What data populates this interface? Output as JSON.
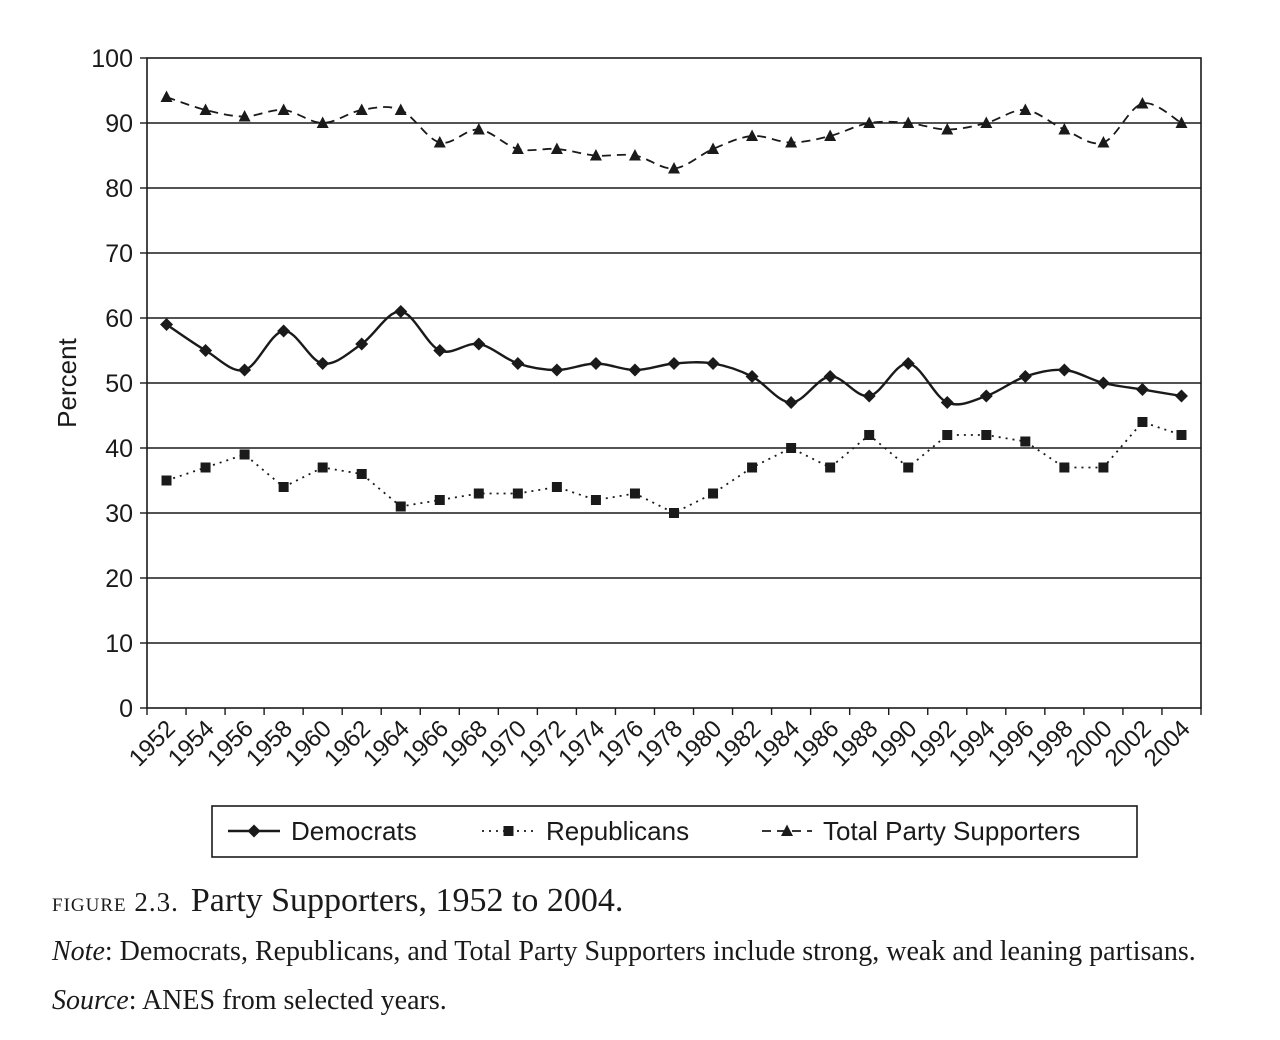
{
  "chart_data": {
    "type": "line",
    "ylabel": "Percent",
    "xlabel": "",
    "ylim": [
      0,
      100
    ],
    "yticks": [
      0,
      10,
      20,
      30,
      40,
      50,
      60,
      70,
      80,
      90,
      100
    ],
    "grid": "horizontal",
    "legend_position": "bottom",
    "x": [
      "1952",
      "1954",
      "1956",
      "1958",
      "1960",
      "1962",
      "1964",
      "1966",
      "1968",
      "1970",
      "1972",
      "1974",
      "1976",
      "1978",
      "1980",
      "1982",
      "1984",
      "1986",
      "1988",
      "1990",
      "1992",
      "1994",
      "1996",
      "1998",
      "2000",
      "2002",
      "2004"
    ],
    "series": [
      {
        "name": "Democrats",
        "style": "solid-smooth",
        "marker": "diamond",
        "values": [
          59,
          55,
          52,
          58,
          53,
          56,
          61,
          55,
          56,
          53,
          52,
          53,
          52,
          53,
          53,
          51,
          47,
          51,
          48,
          53,
          47,
          48,
          51,
          52,
          50,
          49,
          48
        ]
      },
      {
        "name": "Republicans",
        "style": "dotted",
        "marker": "square",
        "values": [
          35,
          37,
          39,
          34,
          37,
          36,
          31,
          32,
          33,
          33,
          34,
          32,
          33,
          30,
          33,
          37,
          40,
          37,
          42,
          37,
          42,
          42,
          41,
          37,
          37,
          44,
          42
        ]
      },
      {
        "name": "Total Party Supporters",
        "style": "dashed-smooth",
        "marker": "triangle",
        "values": [
          94,
          92,
          91,
          92,
          90,
          92,
          92,
          87,
          89,
          86,
          86,
          85,
          85,
          83,
          86,
          88,
          87,
          88,
          90,
          90,
          89,
          90,
          92,
          89,
          87,
          93,
          90
        ]
      }
    ]
  },
  "caption": {
    "figure_label": "figure 2.3.",
    "title": "Party Supporters, 1952 to 2004.",
    "note_label": "Note",
    "note_text": ": Democrats, Republicans, and Total Party Supporters include strong, weak and leaning partisans. ",
    "source_label": "Source",
    "source_text": ": ANES from selected years."
  }
}
